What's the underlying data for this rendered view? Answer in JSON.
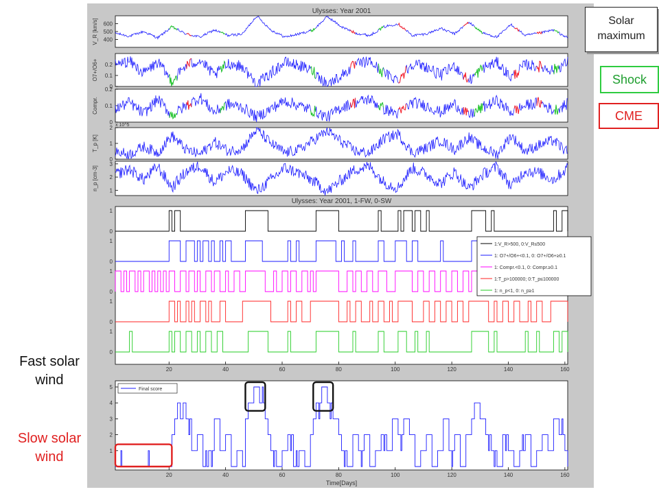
{
  "colors": {
    "panel_bg": "#c8c8c8",
    "plot_bg": "#ffffff",
    "blue": "#1a1aff",
    "red": "#ff2020",
    "green": "#22cc22",
    "magenta": "#ff00ff",
    "black": "#000000",
    "box_black": "#111111",
    "box_red": "#e02020",
    "shock_green": "#2ecc40"
  },
  "labels": {
    "solar_maximum": "Solar maximum",
    "shock": "Shock",
    "cme": "CME",
    "fast_solar_wind": "Fast solar wind",
    "slow_solar_wind": "Slow solar wind"
  },
  "chart_data": [
    {
      "type": "line",
      "title": "Ulysses: Year 2001",
      "ylabel": "V_R [km/s]",
      "ylim": [
        300,
        700
      ],
      "yticks": [
        "400",
        "500",
        "600"
      ],
      "xlim": [
        1,
        161
      ],
      "series": [
        {
          "values_note": "",
          "color": "blue"
        }
      ],
      "x": [
        1,
        6,
        11,
        16,
        21,
        26,
        31,
        36,
        41,
        46,
        51,
        56,
        61,
        66,
        71,
        76,
        81,
        86,
        91,
        96,
        101,
        106,
        111,
        116,
        121,
        126,
        131,
        136,
        141,
        146,
        151,
        156,
        161
      ],
      "y": [
        480,
        440,
        500,
        420,
        560,
        470,
        430,
        520,
        450,
        470,
        700,
        520,
        430,
        470,
        520,
        690,
        560,
        480,
        450,
        560,
        600,
        450,
        470,
        540,
        470,
        620,
        480,
        430,
        590,
        450,
        480,
        520,
        420
      ]
    },
    {
      "type": "line",
      "ylabel": "O7+/O6+",
      "ylim": [
        0,
        0.3
      ],
      "yticks": [
        "0",
        "0.1",
        "0.2"
      ],
      "xlim": [
        1,
        161
      ],
      "x": [
        1,
        6,
        11,
        16,
        21,
        26,
        31,
        36,
        41,
        46,
        51,
        56,
        61,
        66,
        71,
        76,
        81,
        86,
        91,
        96,
        101,
        106,
        111,
        116,
        121,
        126,
        131,
        136,
        141,
        146,
        151,
        156,
        161
      ],
      "y": [
        0.2,
        0.23,
        0.12,
        0.22,
        0.05,
        0.19,
        0.24,
        0.1,
        0.21,
        0.18,
        0.02,
        0.12,
        0.22,
        0.19,
        0.14,
        0.02,
        0.1,
        0.2,
        0.23,
        0.12,
        0.06,
        0.21,
        0.18,
        0.1,
        0.19,
        0.05,
        0.17,
        0.22,
        0.08,
        0.2,
        0.18,
        0.15,
        0.22
      ]
    },
    {
      "type": "line",
      "ylabel": "Compr.",
      "ylim": [
        0,
        0.2
      ],
      "yticks": [
        "0",
        "0.1",
        "0.2"
      ],
      "xlim": [
        1,
        161
      ],
      "x": [
        1,
        6,
        11,
        16,
        21,
        26,
        31,
        36,
        41,
        46,
        51,
        56,
        61,
        66,
        71,
        76,
        81,
        86,
        91,
        96,
        101,
        106,
        111,
        116,
        121,
        126,
        131,
        136,
        141,
        146,
        151,
        156,
        161
      ],
      "y": [
        0.08,
        0.12,
        0.05,
        0.14,
        0.04,
        0.1,
        0.15,
        0.06,
        0.11,
        0.09,
        0.03,
        0.08,
        0.13,
        0.1,
        0.07,
        0.03,
        0.09,
        0.12,
        0.14,
        0.08,
        0.05,
        0.12,
        0.1,
        0.06,
        0.11,
        0.04,
        0.09,
        0.13,
        0.06,
        0.1,
        0.12,
        0.07,
        0.11
      ]
    },
    {
      "type": "line",
      "ylabel": "T_p [K]",
      "scale_label": "x 10^5",
      "ylim": [
        0,
        2
      ],
      "yticks": [
        "0",
        "1",
        "2"
      ],
      "xlim": [
        1,
        161
      ],
      "x": [
        1,
        6,
        11,
        16,
        21,
        26,
        31,
        36,
        41,
        46,
        51,
        56,
        61,
        66,
        71,
        76,
        81,
        86,
        91,
        96,
        101,
        106,
        111,
        116,
        121,
        126,
        131,
        136,
        141,
        146,
        151,
        156,
        161
      ],
      "y": [
        0.5,
        0.3,
        0.8,
        0.4,
        1.5,
        0.6,
        0.3,
        1.1,
        0.5,
        0.7,
        1.9,
        1.0,
        0.4,
        0.6,
        1.2,
        1.8,
        1.1,
        0.5,
        0.4,
        1.3,
        1.6,
        0.4,
        0.7,
        1.2,
        0.6,
        1.4,
        0.7,
        0.3,
        1.5,
        0.5,
        0.9,
        1.2,
        0.4
      ]
    },
    {
      "type": "line",
      "ylabel": "n_p [cm-3]",
      "ylim": [
        0.6,
        3.2
      ],
      "yticks": [
        "1",
        "2",
        "3"
      ],
      "xlim": [
        1,
        161
      ],
      "x": [
        1,
        6,
        11,
        16,
        21,
        26,
        31,
        36,
        41,
        46,
        51,
        56,
        61,
        66,
        71,
        76,
        81,
        86,
        91,
        96,
        101,
        106,
        111,
        116,
        121,
        126,
        131,
        136,
        141,
        146,
        151,
        156,
        161
      ],
      "y": [
        2.2,
        2.6,
        1.8,
        2.8,
        1.2,
        2.4,
        2.9,
        1.6,
        2.5,
        2.2,
        0.9,
        1.8,
        2.7,
        2.3,
        1.7,
        0.9,
        1.8,
        2.6,
        2.8,
        1.6,
        1.2,
        2.7,
        2.2,
        1.5,
        2.4,
        1.1,
        2.2,
        2.8,
        1.3,
        2.5,
        2.3,
        1.8,
        2.7
      ]
    },
    {
      "type": "line",
      "title": "Ulysses: Year 2001, 1-FW, 0-SW",
      "ylim": [
        0,
        1
      ],
      "xlim": [
        1,
        161
      ],
      "xticks": [
        "20",
        "40",
        "60",
        "80",
        "100",
        "120",
        "140",
        "160"
      ],
      "legend": {
        "placement": "right",
        "entries": [
          {
            "label": "1:V_R>500, 0:V_R≤500",
            "color": "black"
          },
          {
            "label": "1: O7+/O6+<0.1, 0: O7+/O6+≥0.1",
            "color": "blue"
          },
          {
            "label": "1: Compr.<0.1, 0: Compr.≥0.1",
            "color": "magenta"
          },
          {
            "label": "1:T_p>100000; 0:T_p≤100000",
            "color": "red"
          },
          {
            "label": "1: n_p<1, 0: n_p≥1",
            "color": "green"
          }
        ]
      },
      "series": [
        {
          "color": "black",
          "on_intervals": [
            [
              20,
              21
            ],
            [
              22,
              24
            ],
            [
              47,
              55
            ],
            [
              72,
              80
            ],
            [
              94,
              95
            ],
            [
              101,
              102
            ],
            [
              103,
              106
            ],
            [
              107,
              109
            ],
            [
              111,
              112
            ],
            [
              127,
              132
            ],
            [
              134,
              135
            ],
            [
              156,
              157
            ],
            [
              159,
              161
            ]
          ]
        },
        {
          "color": "blue",
          "on_intervals": [
            [
              20,
              24
            ],
            [
              26,
              29
            ],
            [
              30,
              31
            ],
            [
              32,
              34
            ],
            [
              35,
              36
            ],
            [
              38,
              39
            ],
            [
              40,
              42
            ],
            [
              47,
              53
            ],
            [
              62,
              63
            ],
            [
              65,
              66
            ],
            [
              72,
              79
            ],
            [
              81,
              82
            ],
            [
              85,
              86
            ],
            [
              94,
              96
            ],
            [
              100,
              104
            ],
            [
              106,
              108
            ],
            [
              116,
              117
            ],
            [
              127,
              132
            ],
            [
              134,
              135
            ],
            [
              136,
              137
            ],
            [
              148,
              149
            ],
            [
              156,
              158
            ],
            [
              159,
              161
            ]
          ]
        },
        {
          "color": "magenta",
          "on_intervals": [
            [
              1,
              3
            ],
            [
              4,
              5
            ],
            [
              6,
              8
            ],
            [
              9,
              10
            ],
            [
              11,
              13
            ],
            [
              14,
              15
            ],
            [
              16,
              17
            ],
            [
              18,
              19
            ],
            [
              20,
              22
            ],
            [
              24,
              26
            ],
            [
              27,
              29
            ],
            [
              30,
              31
            ],
            [
              33,
              35
            ],
            [
              36,
              38
            ],
            [
              40,
              41
            ],
            [
              43,
              45
            ],
            [
              47,
              54
            ],
            [
              57,
              58
            ],
            [
              60,
              62
            ],
            [
              63,
              65
            ],
            [
              67,
              69
            ],
            [
              70,
              71
            ],
            [
              72,
              80
            ],
            [
              83,
              85
            ],
            [
              86,
              88
            ],
            [
              90,
              92
            ],
            [
              94,
              97
            ],
            [
              100,
              106
            ],
            [
              108,
              110
            ],
            [
              112,
              114
            ],
            [
              116,
              118
            ],
            [
              120,
              122
            ],
            [
              124,
              126
            ],
            [
              127,
              133
            ],
            [
              136,
              137
            ],
            [
              139,
              141
            ],
            [
              143,
              145
            ],
            [
              147,
              149
            ],
            [
              151,
              153
            ],
            [
              156,
              161
            ]
          ]
        },
        {
          "color": "red",
          "on_intervals": [
            [
              20,
              22
            ],
            [
              23,
              24
            ],
            [
              26,
              27
            ],
            [
              28,
              29
            ],
            [
              31,
              33
            ],
            [
              34,
              35
            ],
            [
              38,
              40
            ],
            [
              46,
              56
            ],
            [
              62,
              63
            ],
            [
              65,
              67
            ],
            [
              70,
              80
            ],
            [
              83,
              84
            ],
            [
              86,
              88
            ],
            [
              91,
              92
            ],
            [
              94,
              96
            ],
            [
              98,
              99
            ],
            [
              101,
              106
            ],
            [
              110,
              112
            ],
            [
              114,
              116
            ],
            [
              118,
              120
            ],
            [
              122,
              124
            ],
            [
              126,
              133
            ],
            [
              135,
              136
            ],
            [
              138,
              140
            ],
            [
              142,
              144
            ],
            [
              147,
              148
            ],
            [
              150,
              152
            ],
            [
              155,
              161
            ]
          ]
        },
        {
          "color": "green",
          "on_intervals": [
            [
              6,
              7
            ],
            [
              20,
              21
            ],
            [
              22,
              24
            ],
            [
              26,
              28
            ],
            [
              30,
              31
            ],
            [
              33,
              35
            ],
            [
              37,
              39
            ],
            [
              48,
              55
            ],
            [
              62,
              63
            ],
            [
              72,
              80
            ],
            [
              85,
              86
            ],
            [
              94,
              96
            ],
            [
              101,
              104
            ],
            [
              107,
              108
            ],
            [
              111,
              112
            ],
            [
              127,
              133
            ],
            [
              135,
              136
            ],
            [
              146,
              147
            ],
            [
              150,
              151
            ],
            [
              156,
              158
            ],
            [
              159,
              161
            ]
          ]
        }
      ]
    },
    {
      "type": "line",
      "ylabel": "",
      "ylim": [
        0,
        5
      ],
      "yticks": [
        "1",
        "2",
        "3",
        "4",
        "5"
      ],
      "xlim": [
        1,
        161
      ],
      "xticks": [
        "20",
        "40",
        "60",
        "80",
        "100",
        "120",
        "140",
        "160"
      ],
      "xlabel": "Time[Days]",
      "legend": {
        "placement": "top-left",
        "entries": [
          {
            "label": "Final score",
            "color": "blue"
          }
        ]
      },
      "series": [
        {
          "name": "Final score",
          "color": "blue",
          "x": [
            1,
            20,
            21,
            22,
            23,
            24,
            25,
            26,
            28,
            30,
            32,
            34,
            36,
            38,
            40,
            42,
            44,
            46,
            47,
            48,
            50,
            52,
            54,
            55,
            56,
            58,
            60,
            62,
            64,
            66,
            68,
            70,
            71,
            72,
            74,
            76,
            78,
            80,
            81,
            83,
            85,
            87,
            89,
            91,
            93,
            95,
            97,
            99,
            101,
            103,
            105,
            107,
            109,
            111,
            113,
            115,
            117,
            119,
            121,
            123,
            125,
            127,
            128,
            130,
            132,
            134,
            136,
            138,
            140,
            142,
            144,
            146,
            148,
            150,
            152,
            154,
            156,
            158,
            160,
            161
          ],
          "y": [
            0,
            0,
            2,
            3,
            4,
            3,
            4,
            3,
            1,
            2,
            0,
            1,
            3,
            1,
            2,
            0,
            1,
            0,
            3,
            4,
            5,
            4,
            3,
            2,
            1,
            0,
            1,
            2,
            0,
            1,
            0,
            2,
            3,
            4,
            5,
            4,
            3,
            2,
            1,
            0,
            2,
            1,
            2,
            0,
            1,
            2,
            1,
            3,
            2,
            3,
            2,
            0,
            1,
            2,
            0,
            1,
            3,
            1,
            2,
            0,
            2,
            3,
            4,
            3,
            2,
            1,
            0,
            2,
            1,
            0,
            1,
            2,
            0,
            1,
            2,
            1,
            3,
            2,
            1,
            0
          ]
        }
      ],
      "annotations": [
        {
          "label": "fast-box-1",
          "x_range": [
            47,
            54
          ],
          "y_range": [
            3.5,
            5.3
          ],
          "color": "black"
        },
        {
          "label": "fast-box-2",
          "x_range": [
            71,
            78
          ],
          "y_range": [
            3.5,
            5.3
          ],
          "color": "black"
        },
        {
          "label": "slow-box",
          "x_range": [
            1,
            21
          ],
          "y_range": [
            0,
            1.4
          ],
          "color": "red"
        }
      ]
    }
  ]
}
